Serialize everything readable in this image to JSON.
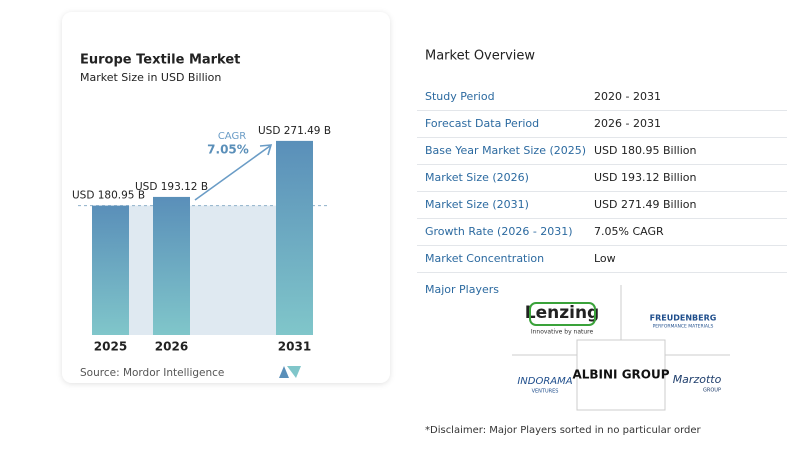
{
  "chart_data": {
    "type": "bar",
    "title": "Europe Textile Market",
    "subtitle": "Market Size in USD Billion",
    "categories": [
      "2025",
      "2026",
      "2031"
    ],
    "values": [
      180.95,
      193.12,
      271.49
    ],
    "value_labels": [
      "USD 180.95 B",
      "USD 193.12 B",
      "USD 271.49 B"
    ],
    "annotation": {
      "label": "CAGR",
      "value": "7.05%"
    },
    "source": "Source:  Mordor Intelligence"
  },
  "overview": {
    "title": "Market Overview",
    "rows": [
      [
        "Study Period",
        "2020 - 2031"
      ],
      [
        "Forecast Data Period",
        "2026 - 2031"
      ],
      [
        "Base Year Market Size (2025)",
        "USD 180.95 Billion"
      ],
      [
        "Market Size (2026)",
        "USD 193.12 Billion"
      ],
      [
        "Market Size (2031)",
        "USD 271.49 Billion"
      ],
      [
        "Growth Rate (2026 - 2031)",
        "7.05% CAGR"
      ],
      [
        "Market Concentration",
        "Low"
      ]
    ]
  },
  "players": {
    "title": "Major Players",
    "logos": [
      "Lenzing",
      "Innovative by nature",
      "FREUDENBERG",
      "PERFORMANCE MATERIALS",
      "INDORAMA",
      "VENTURES",
      "ALBINI GROUP",
      "Marzotto",
      "GROUP"
    ]
  },
  "disclaimer": "*Disclaimer: Major Players sorted in no particular order"
}
